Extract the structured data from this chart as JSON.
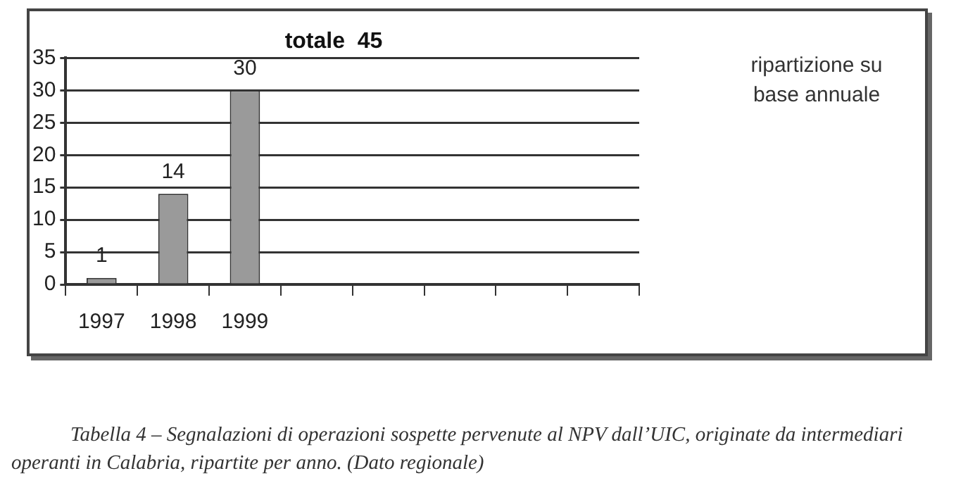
{
  "chart_data": {
    "type": "bar",
    "title": "totale  45",
    "categories": [
      "1997",
      "1998",
      "1999",
      null,
      null,
      null,
      null,
      null
    ],
    "values": [
      1,
      14,
      30,
      null,
      null,
      null,
      null,
      null
    ],
    "color": "#9a9a9a",
    "ylim": [
      0,
      35
    ],
    "yticks": [
      0,
      5,
      10,
      15,
      20,
      25,
      30,
      35
    ],
    "grid": "y",
    "data_labels": true,
    "annotations": [
      "ripartizione su base annuale",
      "Tabella 4 – Segnalazioni di operazioni sospette pervenute al NPV dall’UIC, originate da intermediari operanti in Calabria, ripartite per anno. (Dato regionale)"
    ]
  }
}
